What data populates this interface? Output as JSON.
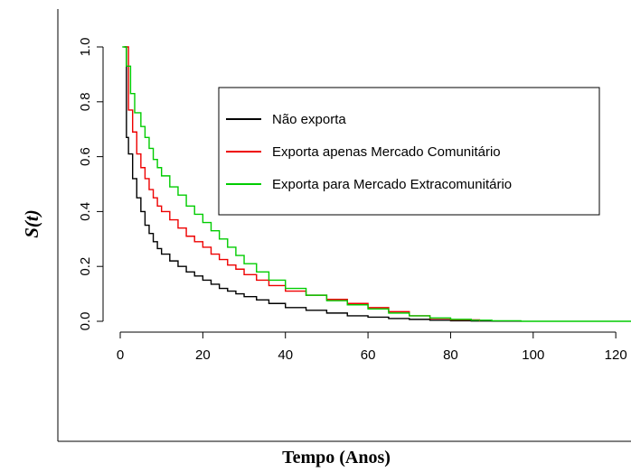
{
  "chart_data": {
    "type": "line",
    "step": true,
    "xlabel": "Tempo (Anos)",
    "ylabel": "S(t)",
    "xlim": [
      0,
      125
    ],
    "ylim": [
      0,
      1
    ],
    "xticks": [
      "0",
      "20",
      "40",
      "60",
      "80",
      "100",
      "120"
    ],
    "yticks": [
      "0.0",
      "0.2",
      "0.4",
      "0.6",
      "0.8",
      "1.0"
    ],
    "grid": false,
    "legend_position": "top-right",
    "series": [
      {
        "name": "Não exporta",
        "color": "#000000",
        "x": [
          1,
          1.5,
          2,
          3,
          4,
          5,
          6,
          7,
          8,
          9,
          10,
          12,
          14,
          16,
          18,
          20,
          22,
          24,
          26,
          28,
          30,
          33,
          36,
          40,
          45,
          50,
          55,
          60,
          65,
          70,
          75,
          80,
          85,
          90,
          97
        ],
        "y": [
          1.0,
          0.67,
          0.61,
          0.52,
          0.45,
          0.4,
          0.35,
          0.32,
          0.29,
          0.265,
          0.245,
          0.22,
          0.2,
          0.18,
          0.165,
          0.15,
          0.135,
          0.12,
          0.11,
          0.1,
          0.09,
          0.078,
          0.065,
          0.05,
          0.04,
          0.03,
          0.02,
          0.015,
          0.01,
          0.007,
          0.004,
          0.002,
          0.001,
          0.0005,
          0.0
        ]
      },
      {
        "name": "Exporta apenas Mercado Comunitário",
        "color": "#ee0000",
        "x": [
          1,
          2,
          3,
          4,
          5,
          6,
          7,
          8,
          9,
          10,
          12,
          14,
          16,
          18,
          20,
          22,
          24,
          26,
          28,
          30,
          33,
          36,
          40,
          45,
          50,
          55,
          60,
          65,
          70,
          75,
          80,
          87
        ],
        "y": [
          1.0,
          0.77,
          0.69,
          0.61,
          0.56,
          0.52,
          0.48,
          0.45,
          0.42,
          0.4,
          0.37,
          0.34,
          0.31,
          0.29,
          0.27,
          0.245,
          0.225,
          0.205,
          0.19,
          0.17,
          0.15,
          0.13,
          0.11,
          0.095,
          0.08,
          0.065,
          0.05,
          0.035,
          0.02,
          0.01,
          0.005,
          0.0
        ]
      },
      {
        "name": "Exporta para Mercado Extracomunitário",
        "color": "#00cc00",
        "x": [
          0.5,
          1.5,
          2.5,
          3.5,
          5,
          6,
          7,
          8,
          9,
          10,
          12,
          14,
          16,
          18,
          20,
          22,
          24,
          26,
          28,
          30,
          33,
          36,
          40,
          45,
          50,
          55,
          60,
          65,
          70,
          75,
          80,
          85,
          90,
          97,
          125
        ],
        "y": [
          1.0,
          0.93,
          0.83,
          0.76,
          0.71,
          0.67,
          0.63,
          0.59,
          0.56,
          0.53,
          0.49,
          0.46,
          0.42,
          0.39,
          0.36,
          0.33,
          0.3,
          0.27,
          0.24,
          0.21,
          0.18,
          0.15,
          0.12,
          0.095,
          0.075,
          0.06,
          0.045,
          0.03,
          0.02,
          0.012,
          0.007,
          0.004,
          0.002,
          0.0,
          0.0
        ]
      }
    ]
  }
}
